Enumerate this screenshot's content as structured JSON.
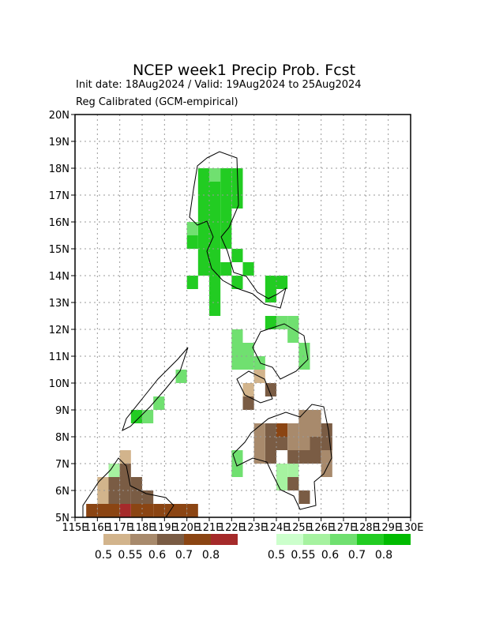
{
  "chart_data": {
    "type": "gridmap",
    "title": "NCEP week1 Precip Prob. Fcst",
    "subtitle": "Init date: 18Aug2024 / Valid: 19Aug2024 to 25Aug2024",
    "note": "Reg Calibrated (GCM-empirical)",
    "xlim": [
      115,
      130
    ],
    "ylim": [
      5,
      20
    ],
    "cell_size": 0.5,
    "grid": true,
    "xticks": [
      {
        "value": 115,
        "label": "115E"
      },
      {
        "value": 116,
        "label": "116E"
      },
      {
        "value": 117,
        "label": "117E"
      },
      {
        "value": 118,
        "label": "118E"
      },
      {
        "value": 119,
        "label": "119E"
      },
      {
        "value": 120,
        "label": "120E"
      },
      {
        "value": 121,
        "label": "121E"
      },
      {
        "value": 122,
        "label": "122E"
      },
      {
        "value": 123,
        "label": "123E"
      },
      {
        "value": 124,
        "label": "124E"
      },
      {
        "value": 125,
        "label": "125E"
      },
      {
        "value": 126,
        "label": "126E"
      },
      {
        "value": 127,
        "label": "127E"
      },
      {
        "value": 128,
        "label": "128E"
      },
      {
        "value": 129,
        "label": "129E"
      },
      {
        "value": 130,
        "label": "130E"
      }
    ],
    "yticks": [
      {
        "value": 5,
        "label": "5N"
      },
      {
        "value": 6,
        "label": "6N"
      },
      {
        "value": 7,
        "label": "7N"
      },
      {
        "value": 8,
        "label": "8N"
      },
      {
        "value": 9,
        "label": "9N"
      },
      {
        "value": 10,
        "label": "10N"
      },
      {
        "value": 11,
        "label": "11N"
      },
      {
        "value": 12,
        "label": "12N"
      },
      {
        "value": 13,
        "label": "13N"
      },
      {
        "value": 14,
        "label": "14N"
      },
      {
        "value": 15,
        "label": "15N"
      },
      {
        "value": 16,
        "label": "16N"
      },
      {
        "value": 17,
        "label": "17N"
      },
      {
        "value": 18,
        "label": "18N"
      },
      {
        "value": 19,
        "label": "19N"
      },
      {
        "value": 20,
        "label": "20N"
      }
    ],
    "dry_levels": [
      0.5,
      0.55,
      0.6,
      0.7,
      0.8
    ],
    "dry_colors": [
      "#d2b48c",
      "#a88a6c",
      "#7a5c44",
      "#8b4513",
      "#a52a2a"
    ],
    "wet_levels": [
      0.5,
      0.55,
      0.6,
      0.7,
      0.8
    ],
    "wet_colors": [
      "#ccffcc",
      "#a6f2a0",
      "#70e070",
      "#22cc22",
      "#00bb00"
    ],
    "wet_cells": [
      [
        120.5,
        15,
        0.7
      ],
      [
        121,
        15,
        0.7
      ],
      [
        121.5,
        15,
        0.7
      ],
      [
        120.5,
        15.5,
        0.7
      ],
      [
        121,
        15.5,
        0.7
      ],
      [
        121.5,
        15.5,
        0.7
      ],
      [
        120.5,
        16,
        0.7
      ],
      [
        121,
        16,
        0.7
      ],
      [
        121.5,
        16,
        0.7
      ],
      [
        120.5,
        16.5,
        0.7
      ],
      [
        121,
        16.5,
        0.7
      ],
      [
        121.5,
        16.5,
        0.7
      ],
      [
        120.5,
        17,
        0.7
      ],
      [
        121,
        17,
        0.7
      ],
      [
        121.5,
        17,
        0.7
      ],
      [
        120.5,
        17.5,
        0.7
      ],
      [
        121,
        17.5,
        0.6
      ],
      [
        121.5,
        17.5,
        0.7
      ],
      [
        122,
        16.5,
        0.7
      ],
      [
        122,
        17,
        0.7
      ],
      [
        122,
        17.5,
        0.7
      ],
      [
        120,
        15,
        0.7
      ],
      [
        120,
        15.5,
        0.6
      ],
      [
        120.5,
        14.5,
        0.7
      ],
      [
        121,
        14.5,
        0.7
      ],
      [
        120.5,
        14,
        0.7
      ],
      [
        121,
        14,
        0.7
      ],
      [
        121.5,
        14,
        0.7
      ],
      [
        122.5,
        14,
        0.7
      ],
      [
        122,
        14.5,
        0.7
      ],
      [
        120,
        13.5,
        0.7
      ],
      [
        121,
        13.5,
        0.7
      ],
      [
        122,
        13.5,
        0.7
      ],
      [
        121,
        13,
        0.7
      ],
      [
        121,
        12.5,
        0.7
      ],
      [
        123.5,
        13.5,
        0.7
      ],
      [
        124,
        13.5,
        0.7
      ],
      [
        123.5,
        13,
        0.7
      ],
      [
        123.5,
        12,
        0.7
      ],
      [
        124,
        12,
        0.6
      ],
      [
        124.5,
        12,
        0.6
      ],
      [
        124.5,
        11.5,
        0.6
      ],
      [
        122,
        11.5,
        0.6
      ],
      [
        122,
        11,
        0.6
      ],
      [
        122,
        10.5,
        0.6
      ],
      [
        122.5,
        11,
        0.6
      ],
      [
        122.5,
        10.5,
        0.6
      ],
      [
        123,
        10.5,
        0.6
      ],
      [
        125,
        10.5,
        0.6
      ],
      [
        125,
        11,
        0.6
      ],
      [
        118.5,
        9,
        0.6
      ],
      [
        118,
        8.5,
        0.6
      ],
      [
        117.5,
        8.5,
        0.7
      ],
      [
        119.5,
        10,
        0.6
      ],
      [
        122,
        7,
        0.6
      ],
      [
        122,
        6.5,
        0.6
      ],
      [
        124,
        6.5,
        0.55
      ],
      [
        124,
        6,
        0.55
      ],
      [
        124.5,
        6.5,
        0.55
      ],
      [
        124.5,
        6,
        0.55
      ],
      [
        116.5,
        6.5,
        0.55
      ]
    ],
    "dry_cells": [
      [
        123.5,
        8,
        0.6
      ],
      [
        123.5,
        7.5,
        0.6
      ],
      [
        123.5,
        7,
        0.6
      ],
      [
        124,
        8,
        0.7
      ],
      [
        124,
        7.5,
        0.6
      ],
      [
        123,
        8,
        0.55
      ],
      [
        123,
        7.5,
        0.55
      ],
      [
        123,
        7,
        0.55
      ],
      [
        124.5,
        8,
        0.55
      ],
      [
        124.5,
        7.5,
        0.55
      ],
      [
        125,
        8,
        0.55
      ],
      [
        125,
        8.5,
        0.55
      ],
      [
        125,
        7.5,
        0.55
      ],
      [
        125.5,
        7.5,
        0.6
      ],
      [
        125.5,
        7,
        0.6
      ],
      [
        125,
        7,
        0.6
      ],
      [
        125.5,
        8,
        0.55
      ],
      [
        125.5,
        8.5,
        0.55
      ],
      [
        124.5,
        7,
        0.6
      ],
      [
        126,
        6.5,
        0.55
      ],
      [
        126,
        7,
        0.55
      ],
      [
        126,
        8,
        0.6
      ],
      [
        126,
        7.5,
        0.6
      ],
      [
        122.5,
        9,
        0.6
      ],
      [
        122.5,
        9.5,
        0.5
      ],
      [
        123,
        10,
        0.5
      ],
      [
        123.5,
        9.5,
        0.6
      ],
      [
        124.5,
        6,
        0.6
      ],
      [
        125,
        5.5,
        0.6
      ],
      [
        116.5,
        5.5,
        0.6
      ],
      [
        116.5,
        6,
        0.6
      ],
      [
        117,
        5.5,
        0.6
      ],
      [
        117,
        6,
        0.6
      ],
      [
        117,
        6.5,
        0.6
      ],
      [
        117,
        7,
        0.5
      ],
      [
        117.5,
        5.5,
        0.6
      ],
      [
        117.5,
        6,
        0.6
      ],
      [
        118,
        5.5,
        0.6
      ],
      [
        116,
        6,
        0.5
      ],
      [
        116,
        5.5,
        0.5
      ],
      [
        115.5,
        5,
        0.7
      ],
      [
        116,
        5,
        0.7
      ],
      [
        116.5,
        5,
        0.7
      ],
      [
        117,
        5,
        0.8
      ],
      [
        117.5,
        5,
        0.7
      ],
      [
        118,
        5,
        0.7
      ],
      [
        118.5,
        5,
        0.7
      ],
      [
        119,
        5,
        0.7
      ],
      [
        119.5,
        5,
        0.7
      ],
      [
        120,
        5,
        0.7
      ]
    ]
  }
}
